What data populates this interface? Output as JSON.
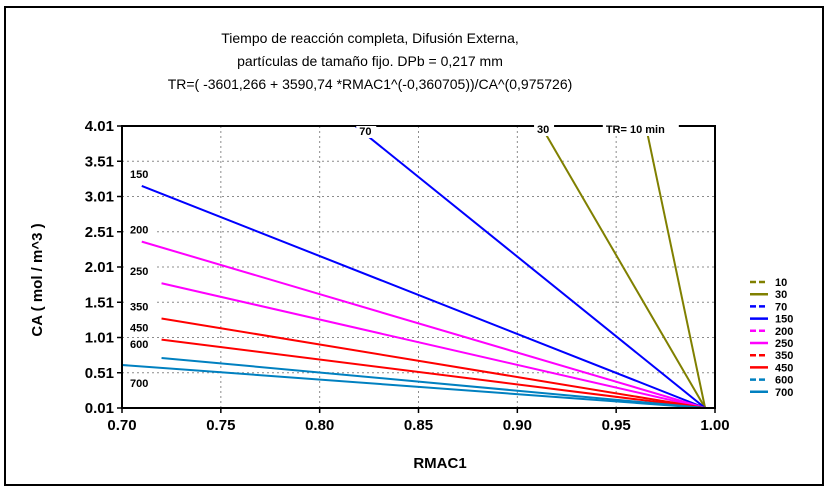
{
  "chart_data": {
    "type": "line",
    "title_lines": [
      "Tiempo de reacción completa, Difusión Externa,",
      "partículas de tamaño fijo. DPb = 0,217 mm",
      "TR=( -3601,266 + 3590,74 *RMAC1^(-0,360705))/CA^(0,975726)"
    ],
    "xlabel": "RMAC1",
    "ylabel": "CA ( mol / m^3 )",
    "xlim": [
      0.7,
      1.0
    ],
    "ylim": [
      0.01,
      4.01
    ],
    "x_ticks": [
      "0.70",
      "0.75",
      "0.80",
      "0.85",
      "0.90",
      "0.95",
      "1.00"
    ],
    "y_ticks": [
      "0.01",
      "0.51",
      "1.01",
      "1.51",
      "2.01",
      "2.51",
      "3.01",
      "3.51",
      "4.01"
    ],
    "grid": true,
    "legend_position": "right",
    "end_point": [
      0.995,
      0.01
    ],
    "series": [
      {
        "name": "10",
        "color": "#808000",
        "dash": true,
        "start": [
          0.965,
          4.01
        ],
        "label": "TR= 10 min"
      },
      {
        "name": "30",
        "color": "#808000",
        "dash": false,
        "start": [
          0.912,
          4.01
        ],
        "label": "30"
      },
      {
        "name": "70",
        "color": "#0000FF",
        "dash": true,
        "start": [
          0.818,
          4.01
        ],
        "label": "70"
      },
      {
        "name": "150",
        "color": "#0000FF",
        "dash": false,
        "start": [
          0.71,
          3.16
        ],
        "label": "150"
      },
      {
        "name": "200",
        "color": "#FF00FF",
        "dash": true,
        "start": [
          0.71,
          2.37
        ],
        "label": "200"
      },
      {
        "name": "250",
        "color": "#FF00FF",
        "dash": false,
        "start": [
          0.72,
          1.78
        ],
        "label": "250"
      },
      {
        "name": "350",
        "color": "#FF0000",
        "dash": true,
        "start": [
          0.72,
          1.28
        ],
        "label": "350"
      },
      {
        "name": "450",
        "color": "#FF0000",
        "dash": false,
        "start": [
          0.72,
          0.98
        ],
        "label": "450"
      },
      {
        "name": "600",
        "color": "#0080C0",
        "dash": true,
        "start": [
          0.72,
          0.72
        ],
        "label": "600"
      },
      {
        "name": "700",
        "color": "#0080C0",
        "dash": false,
        "start": [
          0.7,
          0.62
        ],
        "label": "700"
      }
    ]
  }
}
